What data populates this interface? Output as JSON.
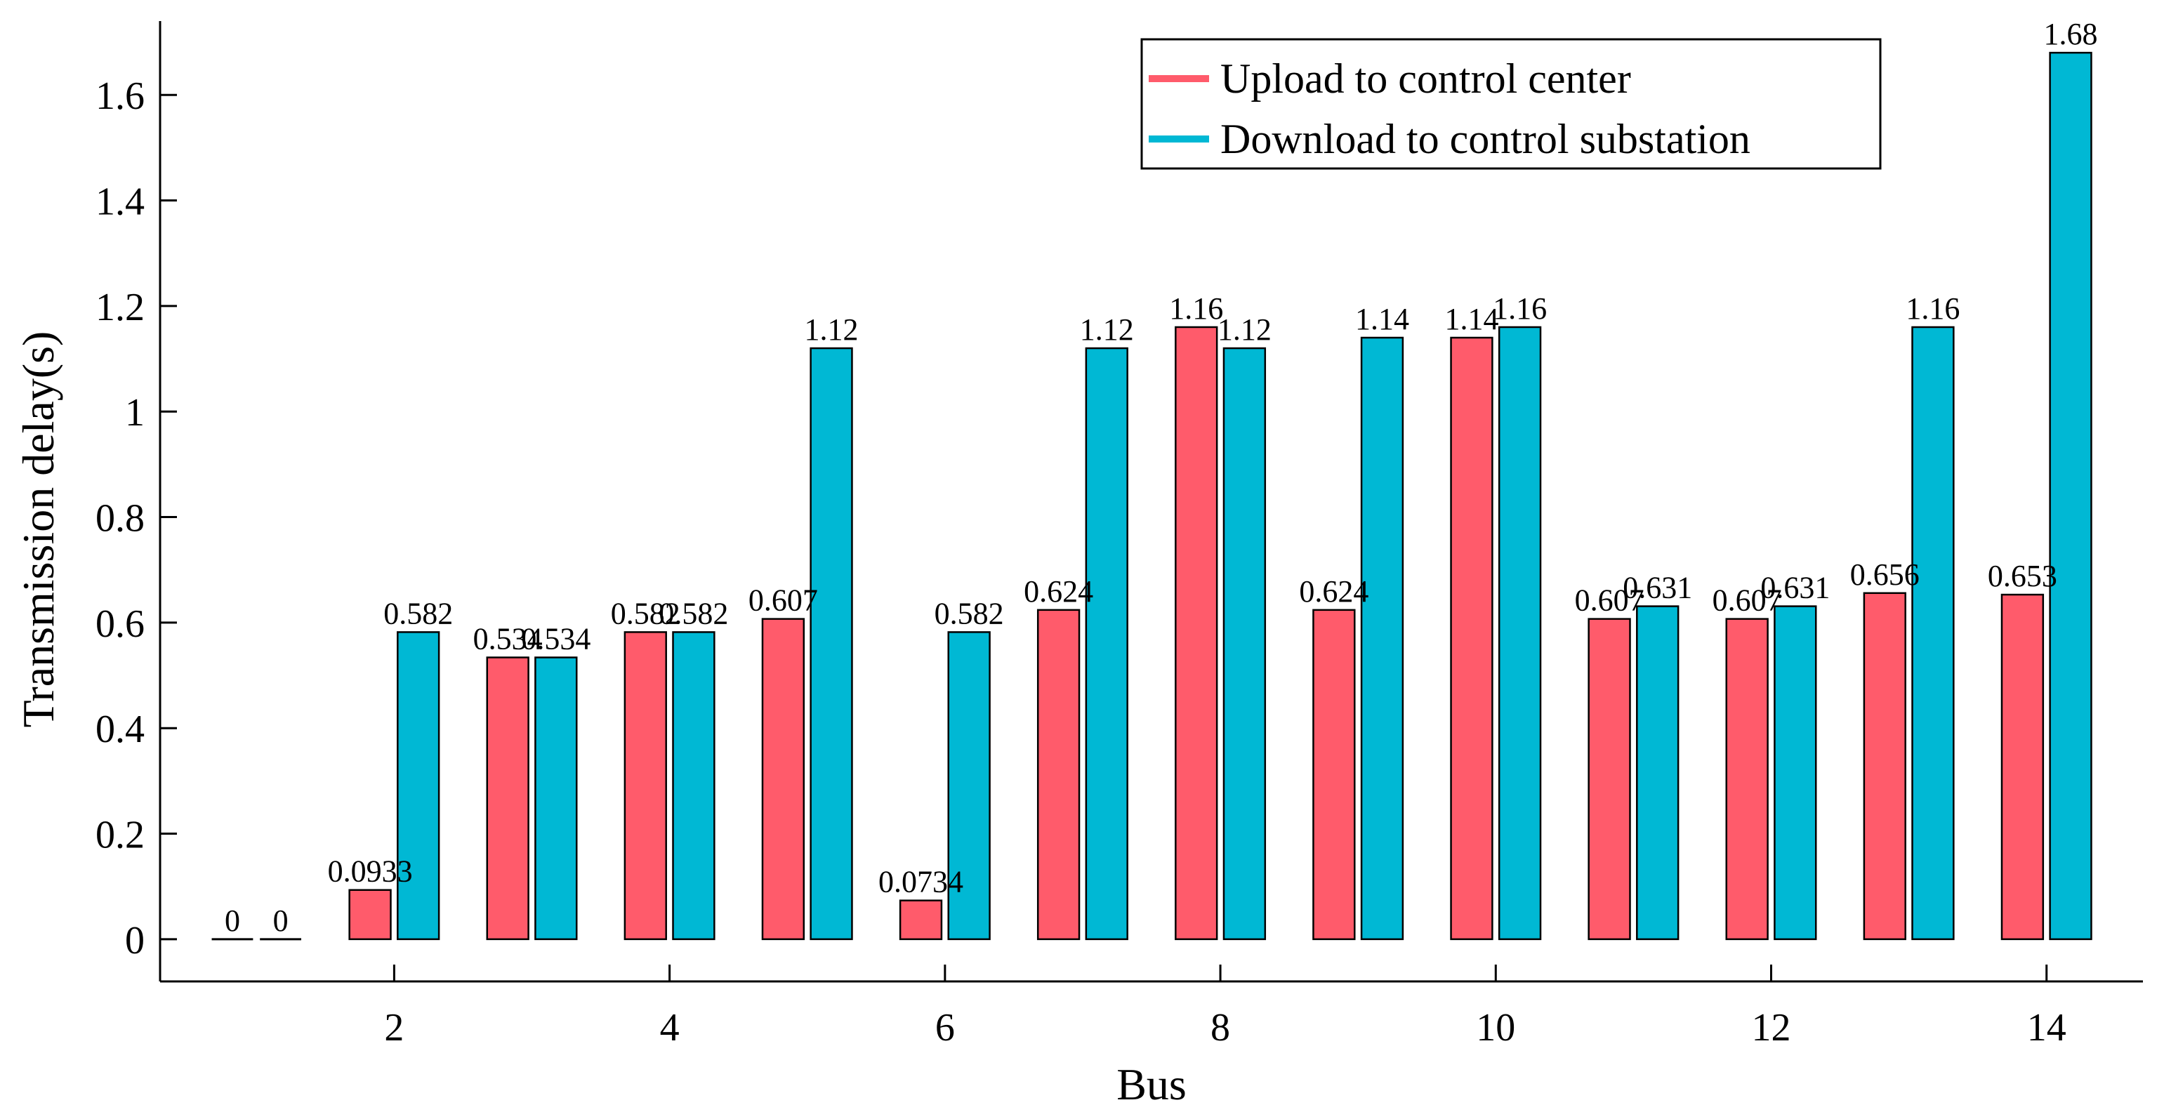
{
  "chart_data": {
    "type": "bar",
    "title": "",
    "xlabel": "Bus",
    "ylabel": "Transmission delay(s)",
    "xlim": [
      0.3,
      14.7
    ],
    "ylim": [
      -0.08,
      1.74
    ],
    "x": [
      1,
      2,
      3,
      4,
      5,
      6,
      7,
      8,
      9,
      10,
      11,
      12,
      13,
      14
    ],
    "xticks": [
      2,
      4,
      6,
      8,
      10,
      12,
      14
    ],
    "xtick_labels": [
      "2",
      "4",
      "6",
      "8",
      "10",
      "12",
      "14"
    ],
    "yticks": [
      0,
      0.2,
      0.4,
      0.6,
      0.8,
      1,
      1.2,
      1.4,
      1.6
    ],
    "ytick_labels": [
      "0",
      "0.2",
      "0.4",
      "0.6",
      "0.8",
      "1",
      "1.2",
      "1.4",
      "1.6"
    ],
    "series": [
      {
        "name": "Upload to control center",
        "color": "#FF5B6B",
        "values": [
          0,
          0.0933,
          0.534,
          0.582,
          0.607,
          0.0734,
          0.624,
          1.16,
          0.624,
          1.14,
          0.607,
          0.607,
          0.656,
          0.653
        ],
        "labels": [
          "0",
          "0.0933",
          "0.534",
          "0.582",
          "0.607",
          "0.0734",
          "0.624",
          "1.16",
          "0.624",
          "1.14",
          "0.607",
          "0.607",
          "0.656",
          "0.653"
        ]
      },
      {
        "name": "Download to control substation",
        "color": "#00B8D4",
        "values": [
          0,
          0.582,
          0.534,
          0.582,
          1.12,
          0.582,
          1.12,
          1.12,
          1.14,
          1.16,
          0.631,
          0.631,
          1.16,
          1.68
        ],
        "labels": [
          "0",
          "0.582",
          "0.534",
          "0.582",
          "1.12",
          "0.582",
          "1.12",
          "1.12",
          "1.14",
          "1.16",
          "0.631",
          "0.631",
          "1.16",
          "1.68"
        ]
      }
    ],
    "legend": {
      "position": "top-right"
    },
    "grid": false
  }
}
